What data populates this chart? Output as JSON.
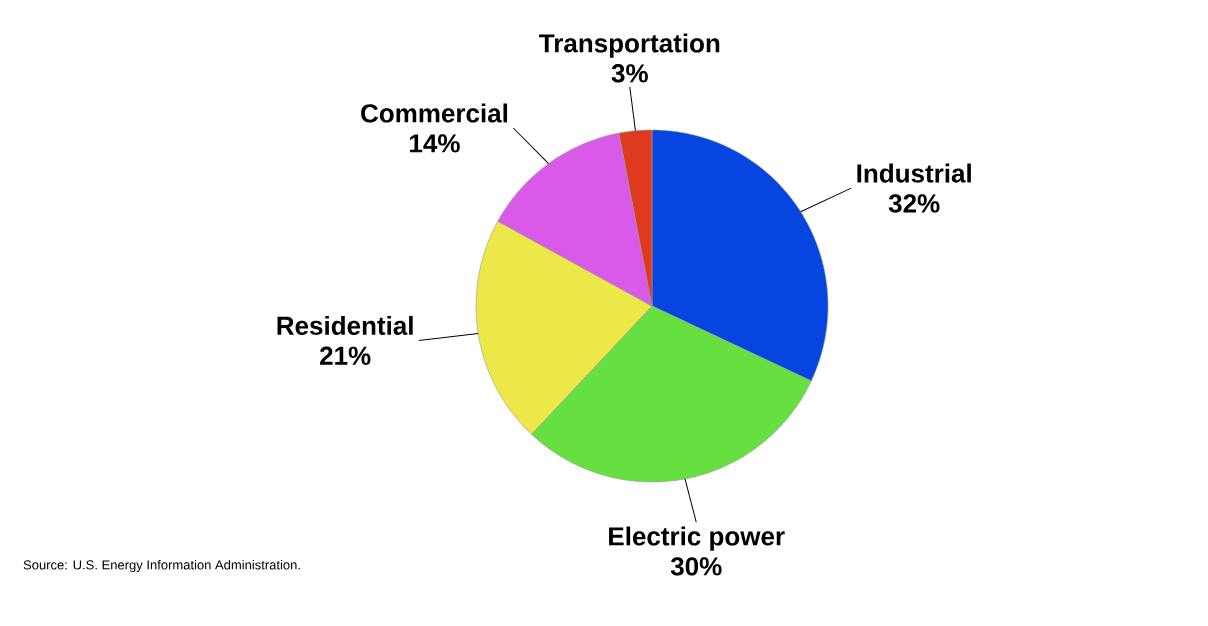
{
  "chart_data": {
    "type": "pie",
    "categories": [
      "Industrial",
      "Electric power",
      "Residential",
      "Commercial",
      "Transportation"
    ],
    "values": [
      32,
      30,
      21,
      14,
      3
    ],
    "value_labels": [
      "32%",
      "30%",
      "21%",
      "14%",
      "3%"
    ],
    "colors": [
      "#0645e0",
      "#66e040",
      "#ede84a",
      "#d95ae8",
      "#e03a1e"
    ],
    "annotations": [
      "Source: U.S. Energy Information Administration."
    ]
  }
}
